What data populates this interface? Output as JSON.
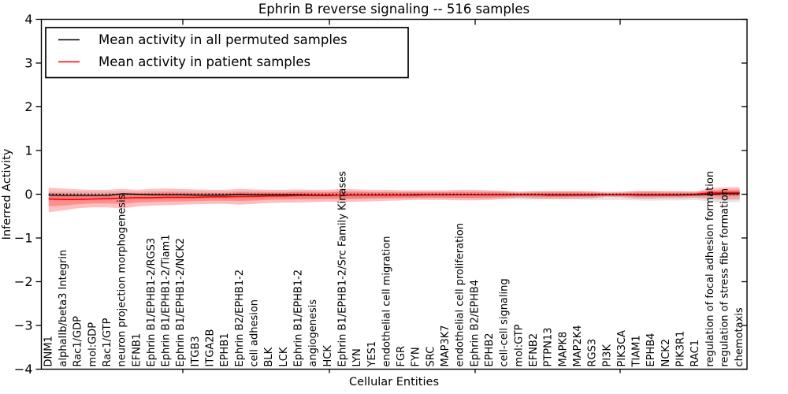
{
  "legend": {
    "items": [
      {
        "label": "Mean activity in all permuted samples",
        "color": "#000000"
      },
      {
        "label": "Mean activity in patient samples",
        "color": "#ff0000"
      }
    ],
    "position": "upper left"
  },
  "chart_data": {
    "type": "line",
    "title": "Ephrin B reverse signaling -- 516 samples",
    "xlabel": "Cellular Entities",
    "ylabel": "Inferred Activity",
    "ylim": [
      -4,
      4
    ],
    "yticks": [
      -4,
      -3,
      -2,
      -1,
      0,
      1,
      2,
      3,
      4
    ],
    "yticklabels": [
      "−4",
      "−3",
      "−2",
      "−1",
      "0",
      "1",
      "2",
      "3",
      "4"
    ],
    "grid": false,
    "categories": [
      "DNM1",
      "alphaIIb/beta3 Integrin",
      "Rac1/GDP",
      "mol:GDP",
      "Rac1/GTP",
      "neuron projection morphogenesis",
      "EFNB1",
      "Ephrin B1/EPHB1-2/RGS3",
      "Ephrin B1/EPHB1-2/Tiam1",
      "Ephrin B1/EPHB1-2/NCK2",
      "ITGB3",
      "ITGA2B",
      "EPHB1",
      "Ephrin B2/EPHB1-2",
      "cell adhesion",
      "BLK",
      "LCK",
      "Ephrin B1/EPHB1-2",
      "angiogenesis",
      "HCK",
      "Ephrin B1/EPHB1-2/Src Family Kinases",
      "LYN",
      "YES1",
      "endothelial cell migration",
      "FGR",
      "FYN",
      "SRC",
      "MAP3K7",
      "endothelial cell proliferation",
      "Ephrin B2/EPHB4",
      "EPHB2",
      "cell-cell signaling",
      "mol:GTP",
      "EFNB2",
      "PTPN13",
      "MAPK8",
      "MAP2K4",
      "RGS3",
      "PI3K",
      "PIK3CA",
      "TIAM1",
      "EPHB4",
      "NCK2",
      "PIK3R1",
      "RAC1",
      "regulation of focal adhesion formation",
      "regulation of stress fiber formation",
      "chemotaxis"
    ],
    "series": [
      {
        "name": "Mean activity in all permuted samples",
        "color": "#000000",
        "style": "solid",
        "values": [
          -0.02,
          -0.03,
          -0.03,
          -0.03,
          -0.03,
          0.01,
          0.0,
          -0.01,
          -0.01,
          -0.01,
          -0.02,
          -0.02,
          -0.02,
          0.0,
          -0.01,
          -0.01,
          -0.01,
          -0.01,
          -0.02,
          -0.02,
          -0.02,
          -0.02,
          -0.02,
          -0.02,
          -0.02,
          -0.02,
          -0.01,
          -0.01,
          -0.01,
          -0.01,
          -0.01,
          -0.01,
          -0.01,
          -0.01,
          -0.02,
          -0.02,
          -0.02,
          -0.02,
          -0.01,
          -0.01,
          -0.02,
          -0.02,
          -0.02,
          -0.02,
          -0.01,
          0.0,
          0.01,
          0.01
        ]
      },
      {
        "name": "Permuted reference (dotted)",
        "color": "#000000",
        "style": "dotted",
        "values": [
          0,
          0,
          0,
          0,
          0,
          0,
          0,
          0,
          0,
          0,
          0,
          0,
          0,
          0,
          0,
          0,
          0,
          0,
          0,
          0,
          0,
          0,
          0,
          0,
          0,
          0,
          0,
          0,
          0,
          0,
          0,
          0,
          0,
          0,
          0,
          0,
          0,
          0,
          0,
          0,
          0,
          0,
          0,
          0,
          0,
          0,
          0,
          0
        ]
      },
      {
        "name": "Mean activity in patient samples",
        "color": "#ff0000",
        "style": "solid",
        "values": [
          -0.11,
          -0.12,
          -0.12,
          -0.11,
          -0.1,
          -0.09,
          -0.08,
          -0.08,
          -0.07,
          -0.07,
          -0.07,
          -0.06,
          -0.06,
          -0.05,
          -0.05,
          -0.04,
          -0.04,
          -0.03,
          -0.03,
          -0.03,
          -0.02,
          -0.02,
          -0.02,
          -0.02,
          -0.02,
          -0.01,
          -0.01,
          -0.01,
          -0.01,
          -0.01,
          -0.01,
          -0.01,
          -0.01,
          -0.01,
          -0.01,
          -0.01,
          -0.01,
          -0.01,
          -0.01,
          -0.01,
          -0.01,
          -0.01,
          -0.01,
          -0.01,
          0.0,
          0.03,
          0.04,
          0.04
        ]
      }
    ],
    "bands": [
      {
        "name": "permuted-spread-band",
        "color": "rgba(0,0,0,0.10)",
        "upper": [
          0.06,
          0.06,
          0.06,
          0.06,
          0.06,
          0.07,
          0.06,
          0.07,
          0.07,
          0.07,
          0.07,
          0.06,
          0.06,
          0.07,
          0.07,
          0.06,
          0.06,
          0.07,
          0.07,
          0.06,
          0.07,
          0.07,
          0.06,
          0.06,
          0.06,
          0.06,
          0.06,
          0.06,
          0.07,
          0.07,
          0.07,
          0.06,
          0.07,
          0.07,
          0.06,
          0.06,
          0.06,
          0.06,
          0.07,
          0.07,
          0.07,
          0.07,
          0.07,
          0.07,
          0.07,
          0.07,
          0.07,
          0.07
        ],
        "lower": [
          -0.1,
          -0.1,
          -0.1,
          -0.09,
          -0.09,
          -0.1,
          -0.09,
          -0.1,
          -0.1,
          -0.1,
          -0.1,
          -0.09,
          -0.09,
          -0.1,
          -0.1,
          -0.09,
          -0.09,
          -0.1,
          -0.1,
          -0.09,
          -0.1,
          -0.1,
          -0.09,
          -0.09,
          -0.09,
          -0.09,
          -0.09,
          -0.09,
          -0.1,
          -0.1,
          -0.1,
          -0.09,
          -0.12,
          -0.12,
          -0.11,
          -0.11,
          -0.12,
          -0.13,
          -0.13,
          -0.13,
          -0.14,
          -0.15,
          -0.14,
          -0.14,
          -0.13,
          -0.17,
          -0.18,
          -0.18
        ]
      },
      {
        "name": "patient-spread-band",
        "color": "rgba(255,0,0,0.25)",
        "inner_fraction": 0.55,
        "mean_ref": 2,
        "upper": [
          0.15,
          0.13,
          0.11,
          0.1,
          0.1,
          0.12,
          0.1,
          0.12,
          0.13,
          0.12,
          0.11,
          0.1,
          0.1,
          0.12,
          0.11,
          0.1,
          0.1,
          0.11,
          0.1,
          0.1,
          0.12,
          0.11,
          0.1,
          0.1,
          0.09,
          0.09,
          0.09,
          0.09,
          0.1,
          0.1,
          0.09,
          0.08,
          0.05,
          0.07,
          0.08,
          0.08,
          0.08,
          0.07,
          0.04,
          0.05,
          0.08,
          0.08,
          0.07,
          0.07,
          0.06,
          0.14,
          0.16,
          0.16
        ],
        "lower": [
          -0.41,
          -0.37,
          -0.32,
          -0.3,
          -0.3,
          -0.33,
          -0.28,
          -0.26,
          -0.25,
          -0.24,
          -0.23,
          -0.22,
          -0.22,
          -0.24,
          -0.22,
          -0.2,
          -0.19,
          -0.19,
          -0.18,
          -0.17,
          -0.18,
          -0.17,
          -0.16,
          -0.15,
          -0.14,
          -0.13,
          -0.13,
          -0.13,
          -0.14,
          -0.14,
          -0.13,
          -0.11,
          -0.08,
          -0.1,
          -0.11,
          -0.11,
          -0.1,
          -0.09,
          -0.06,
          -0.07,
          -0.1,
          -0.1,
          -0.09,
          -0.09,
          -0.08,
          -0.11,
          -0.12,
          -0.12
        ]
      }
    ]
  }
}
